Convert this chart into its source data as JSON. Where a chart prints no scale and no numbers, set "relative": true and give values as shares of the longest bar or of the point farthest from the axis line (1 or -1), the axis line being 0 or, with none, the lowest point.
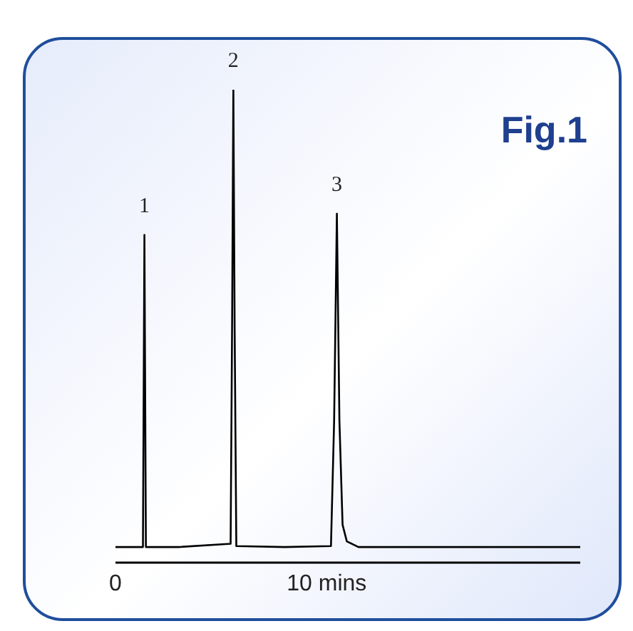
{
  "chart_data": {
    "type": "line",
    "relative": true,
    "marker": "none",
    "tick_labels": "x",
    "x": [
      0,
      1.3,
      1.37,
      1.44,
      3,
      5.45,
      5.52,
      5.58,
      5.64,
      5.72,
      8,
      10.2,
      10.35,
      10.48,
      10.6,
      10.75,
      10.95,
      11.5,
      22
    ],
    "series": [
      {
        "color": "#000000",
        "values": [
          0.033,
          0.033,
          0.693,
          0.033,
          0.033,
          0.04,
          0.5,
          1,
          0.5,
          0.035,
          0.033,
          0.035,
          0.3,
          0.738,
          0.3,
          0.08,
          0.045,
          0.033,
          0.033
        ]
      }
    ],
    "xlim": [
      0,
      22
    ],
    "xticks": [
      0,
      {
        "value": 10,
        "label": "10 mins"
      }
    ],
    "annotations": [
      {
        "text": "1",
        "x": 1.37,
        "y": 0.693
      },
      {
        "text": "2",
        "x": 5.58,
        "y": 1
      },
      {
        "text": "3",
        "x": 10.48,
        "y": 0.738
      },
      "Fig.1"
    ]
  }
}
